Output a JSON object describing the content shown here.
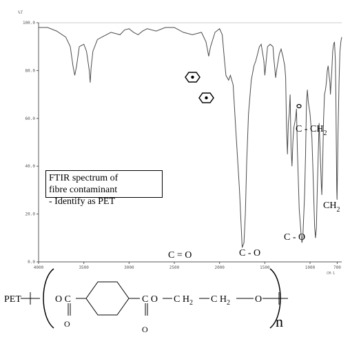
{
  "chart_data": {
    "type": "line",
    "title": "",
    "xlabel": "CM-1",
    "ylabel": "%T",
    "x_axis": {
      "reversed": true,
      "min": 650,
      "max": 4000
    },
    "y_axis": {
      "min": 0,
      "max": 100
    },
    "x_tick_labels": [
      {
        "value": 4000,
        "label": "4000"
      },
      {
        "value": 3500,
        "label": "3500"
      },
      {
        "value": 3000,
        "label": "3000"
      },
      {
        "value": 2500,
        "label": "2500"
      },
      {
        "value": 2000,
        "label": "2000"
      },
      {
        "value": 1500,
        "label": "1500"
      },
      {
        "value": 1000,
        "label": "1000"
      },
      {
        "value": 700,
        "label": "700"
      }
    ],
    "y_tick_labels": [
      {
        "value": 0,
        "label": "0.0"
      },
      {
        "value": 20,
        "label": "20.0"
      },
      {
        "value": 40,
        "label": "40.0"
      },
      {
        "value": 60,
        "label": "60.0"
      },
      {
        "value": 80,
        "label": "80.0"
      },
      {
        "value": 100,
        "label": "100.0"
      }
    ],
    "series": [
      {
        "points": [
          [
            4000,
            98
          ],
          [
            3900,
            98
          ],
          [
            3800,
            96.5
          ],
          [
            3700,
            94
          ],
          [
            3650,
            90
          ],
          [
            3620,
            82
          ],
          [
            3600,
            78
          ],
          [
            3580,
            82
          ],
          [
            3550,
            90
          ],
          [
            3500,
            91
          ],
          [
            3470,
            88
          ],
          [
            3440,
            80
          ],
          [
            3430,
            75
          ],
          [
            3420,
            81
          ],
          [
            3400,
            88
          ],
          [
            3350,
            93
          ],
          [
            3300,
            94
          ],
          [
            3200,
            96
          ],
          [
            3100,
            95
          ],
          [
            3050,
            97
          ],
          [
            3000,
            97.5
          ],
          [
            2950,
            96
          ],
          [
            2900,
            95
          ],
          [
            2850,
            96.5
          ],
          [
            2800,
            97.5
          ],
          [
            2700,
            96.5
          ],
          [
            2600,
            98
          ],
          [
            2500,
            98
          ],
          [
            2400,
            96
          ],
          [
            2300,
            95
          ],
          [
            2200,
            96
          ],
          [
            2150,
            92
          ],
          [
            2120,
            86
          ],
          [
            2100,
            90
          ],
          [
            2050,
            96
          ],
          [
            2000,
            97.5
          ],
          [
            1970,
            95
          ],
          [
            1950,
            86
          ],
          [
            1930,
            78
          ],
          [
            1900,
            76
          ],
          [
            1880,
            78
          ],
          [
            1850,
            74
          ],
          [
            1820,
            55
          ],
          [
            1780,
            30
          ],
          [
            1750,
            6
          ],
          [
            1730,
            8
          ],
          [
            1715,
            20
          ],
          [
            1700,
            42
          ],
          [
            1680,
            62
          ],
          [
            1650,
            76
          ],
          [
            1620,
            82
          ],
          [
            1600,
            84
          ],
          [
            1580,
            87
          ],
          [
            1560,
            90
          ],
          [
            1540,
            91
          ],
          [
            1510,
            84
          ],
          [
            1500,
            78
          ],
          [
            1490,
            82
          ],
          [
            1470,
            90
          ],
          [
            1440,
            91
          ],
          [
            1410,
            90
          ],
          [
            1400,
            85
          ],
          [
            1380,
            77
          ],
          [
            1370,
            80
          ],
          [
            1340,
            87
          ],
          [
            1320,
            89
          ],
          [
            1300,
            86
          ],
          [
            1280,
            82
          ],
          [
            1270,
            77
          ],
          [
            1260,
            56
          ],
          [
            1250,
            45
          ],
          [
            1240,
            58
          ],
          [
            1230,
            62
          ],
          [
            1220,
            70
          ],
          [
            1210,
            48
          ],
          [
            1200,
            40
          ],
          [
            1190,
            50
          ],
          [
            1180,
            56
          ],
          [
            1160,
            60
          ],
          [
            1150,
            64
          ],
          [
            1140,
            47
          ],
          [
            1120,
            22
          ],
          [
            1100,
            12
          ],
          [
            1090,
            8
          ],
          [
            1080,
            10
          ],
          [
            1060,
            28
          ],
          [
            1050,
            45
          ],
          [
            1040,
            66
          ],
          [
            1030,
            72
          ],
          [
            1020,
            67
          ],
          [
            1000,
            62
          ],
          [
            980,
            52
          ],
          [
            965,
            35
          ],
          [
            950,
            15
          ],
          [
            940,
            10
          ],
          [
            930,
            14
          ],
          [
            920,
            30
          ],
          [
            910,
            45
          ],
          [
            900,
            58
          ],
          [
            890,
            48
          ],
          [
            875,
            32
          ],
          [
            870,
            28
          ],
          [
            860,
            42
          ],
          [
            850,
            60
          ],
          [
            840,
            70
          ],
          [
            830,
            72
          ],
          [
            820,
            75
          ],
          [
            810,
            80
          ],
          [
            800,
            82
          ],
          [
            790,
            78
          ],
          [
            780,
            75
          ],
          [
            775,
            70
          ],
          [
            760,
            80
          ],
          [
            750,
            88
          ],
          [
            740,
            91
          ],
          [
            730,
            92
          ],
          [
            720,
            84
          ],
          [
            715,
            70
          ],
          [
            710,
            50
          ],
          [
            705,
            30
          ],
          [
            702,
            26
          ],
          [
            698,
            35
          ],
          [
            690,
            55
          ],
          [
            680,
            75
          ],
          [
            670,
            88
          ],
          [
            660,
            92
          ],
          [
            650,
            94
          ]
        ]
      }
    ],
    "grid": false,
    "annotations": [
      {
        "label": "C = O",
        "near_x": 1730
      },
      {
        "label": "C - O",
        "near_x": 1090
      },
      {
        "label": "C - O",
        "near_x": 940
      },
      {
        "label": "C - CH",
        "sub": "2",
        "near_x": 875
      },
      {
        "label": "CH",
        "sub": "2",
        "near_x": 702
      }
    ],
    "aromatic_ring_markers": 3
  },
  "note_box": {
    "lines": [
      "FTIR spectrum of",
      "fibre contaminant",
      "- Identify as PET"
    ]
  },
  "structure": {
    "name": "PET",
    "oc": "O C",
    "carbonyl_o_left": "O",
    "co": "C O",
    "carbonyl_o_right": "O",
    "ch2_a": "C H",
    "ch2_b": "C H",
    "sub2": "2",
    "o_end": "O",
    "n": "n"
  }
}
